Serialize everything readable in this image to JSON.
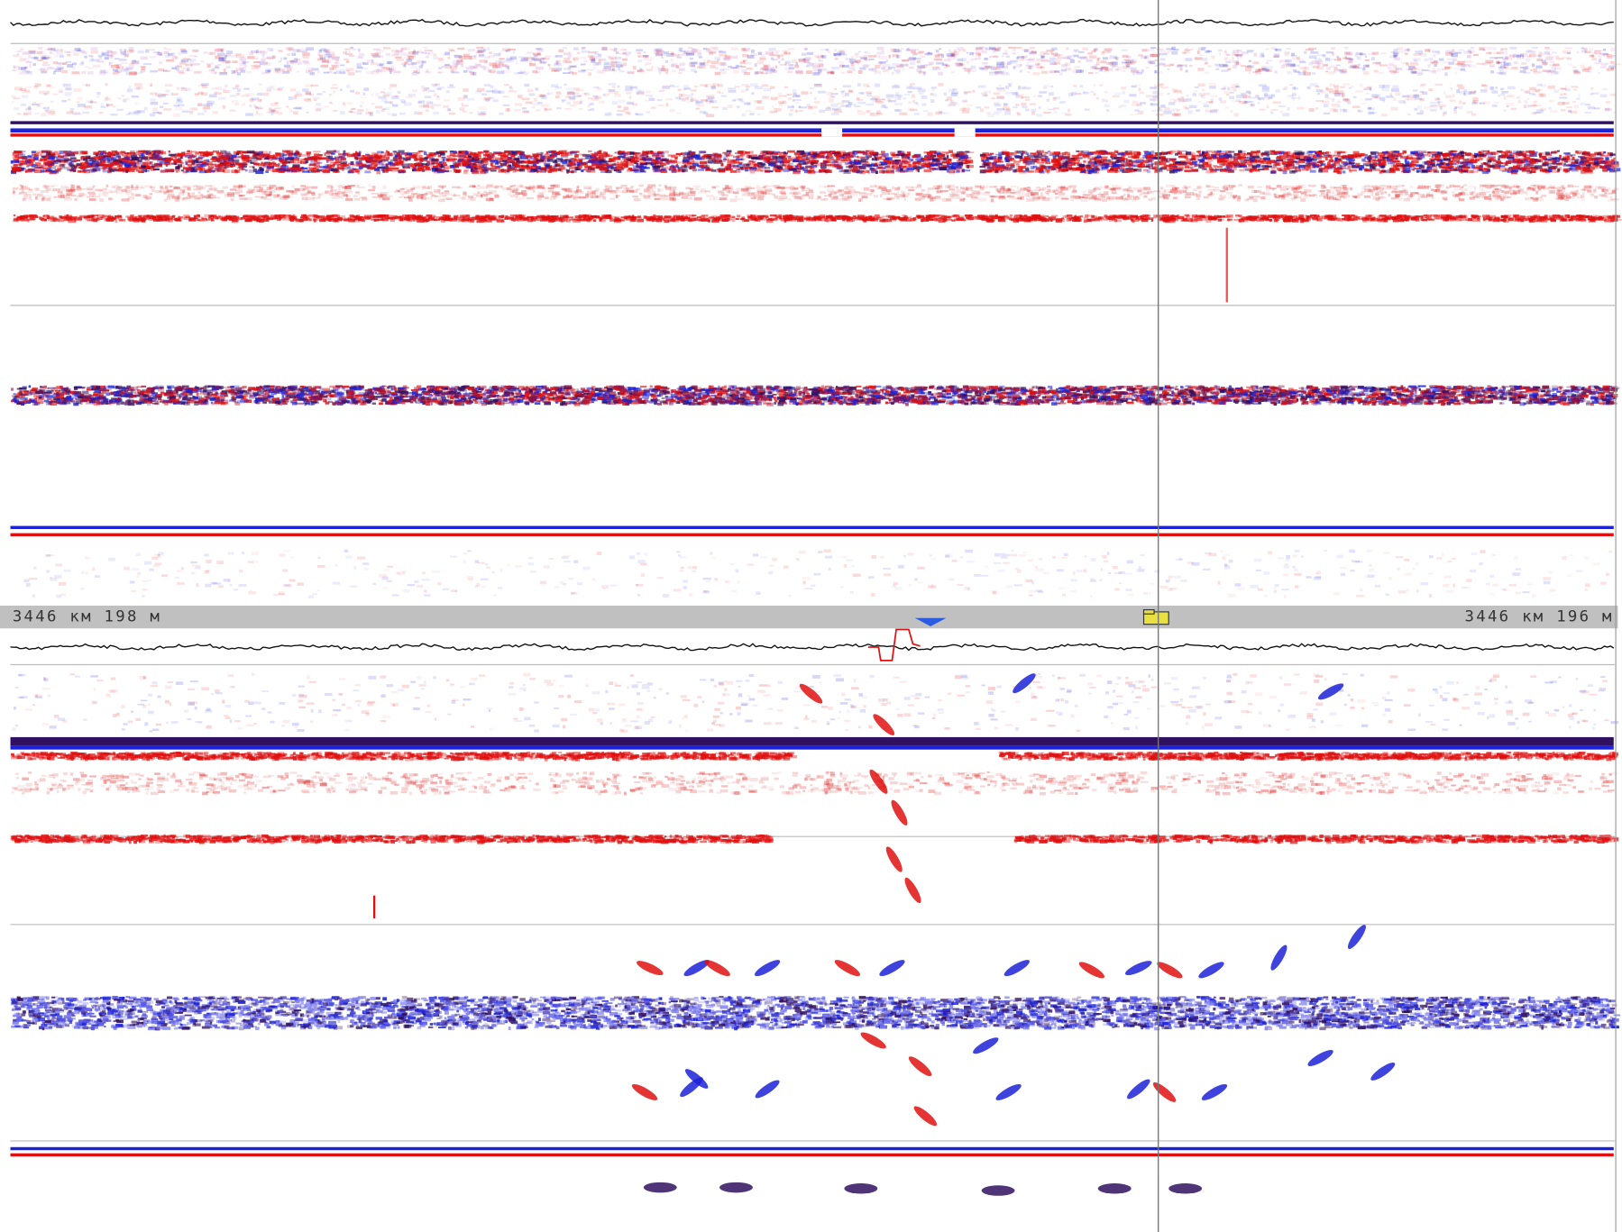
{
  "ruler": {
    "left_label": "3446 км 198 м",
    "right_label": "3446 км 196 м"
  }
}
